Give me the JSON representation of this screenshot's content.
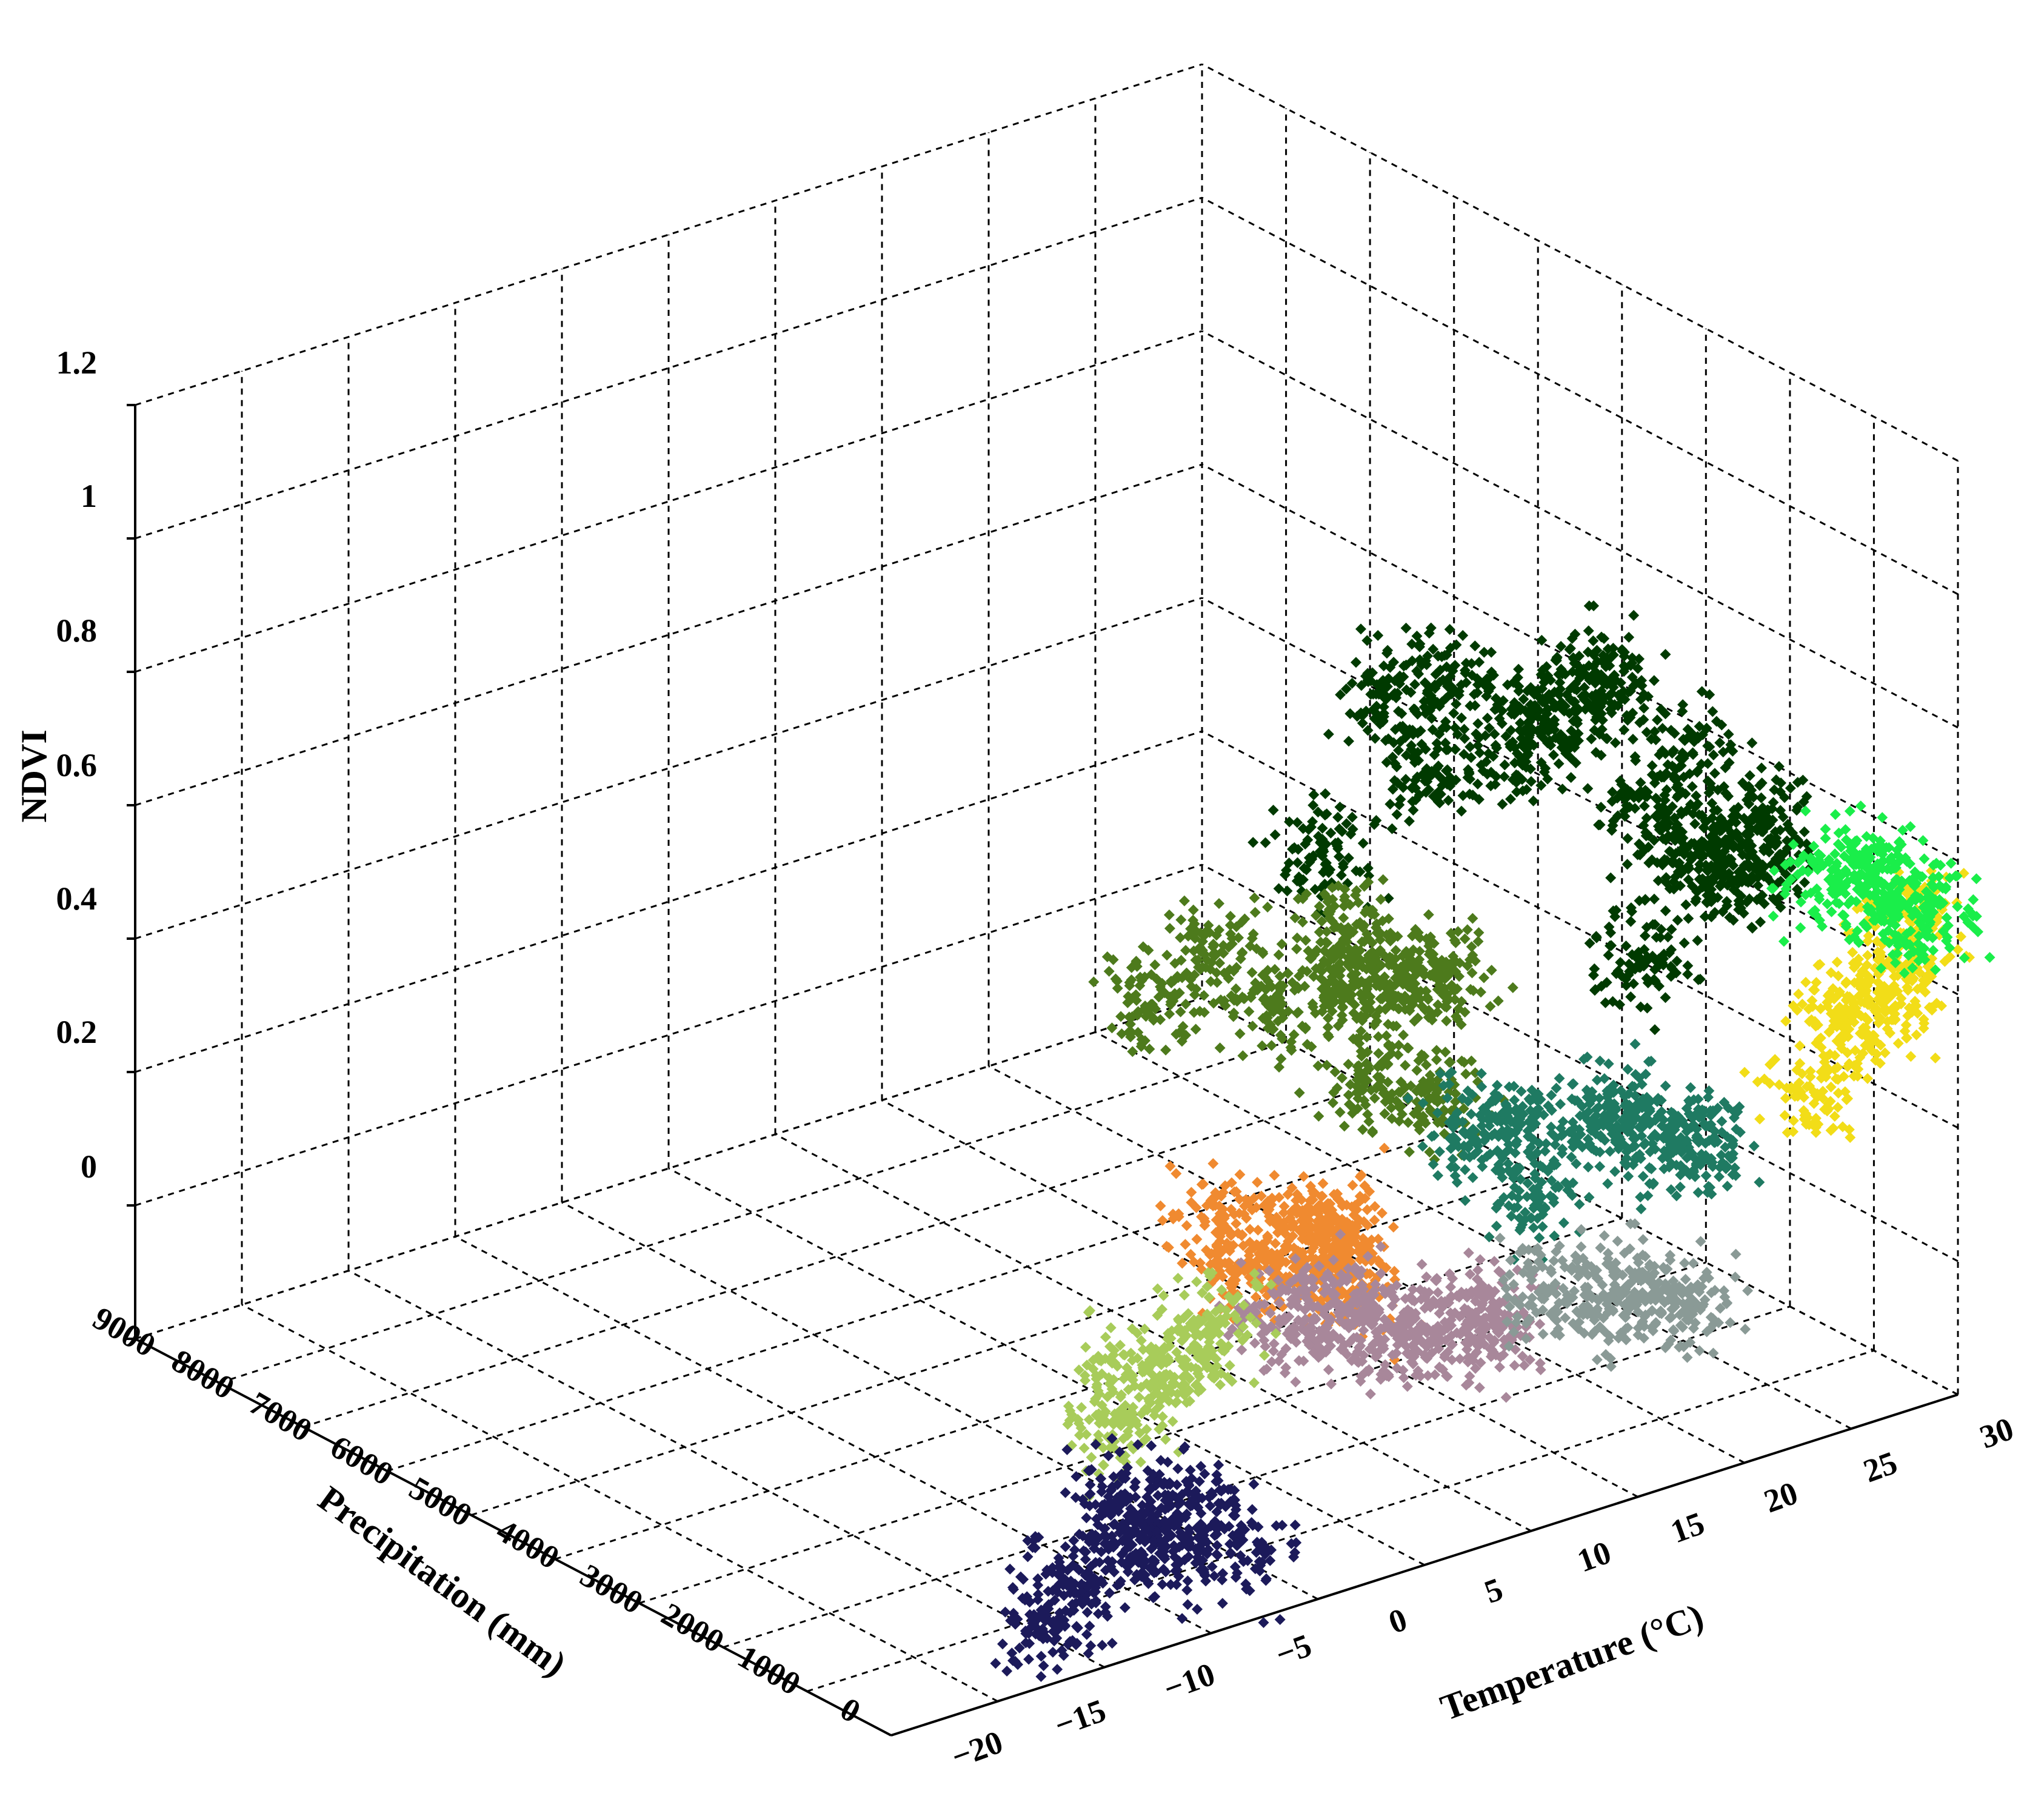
{
  "chart_data": {
    "type": "scatter",
    "dimensions": "3d",
    "zlabel": "NDVI",
    "xlabel": "Precipitation (mm)",
    "ylabel": "Temperature (°C)",
    "zlim": [
      -0.2,
      1.2
    ],
    "xlim": [
      0,
      9000
    ],
    "ylim": [
      -20,
      30
    ],
    "z_ticks": [
      "1.2",
      "1",
      "0.8",
      "0.6",
      "0.4",
      "0.2",
      "0"
    ],
    "x_ticks": [
      "9000",
      "8000",
      "7000",
      "6000",
      "5000",
      "4000",
      "3000",
      "2000",
      "1000",
      "0"
    ],
    "y_ticks": [
      "−20",
      "−15",
      "−10",
      "−5",
      "0",
      "5",
      "10",
      "15",
      "20",
      "25",
      "30"
    ],
    "grid": true,
    "marker": "diamond",
    "series": [
      {
        "color": "#003a00",
        "points": [
          [
            400,
            22,
            0.72
          ],
          [
            1000,
            21,
            0.78
          ],
          [
            1500,
            19,
            0.85
          ],
          [
            2000,
            18,
            0.82
          ],
          [
            2500,
            16,
            0.84
          ],
          [
            3000,
            15,
            0.8
          ],
          [
            1800,
            23,
            0.62
          ],
          [
            2600,
            20,
            0.7
          ],
          [
            800,
            24,
            0.6
          ],
          [
            1200,
            18,
            0.92
          ],
          [
            2200,
            14,
            0.75
          ],
          [
            1600,
            25,
            0.55
          ],
          [
            3000,
            12,
            0.6
          ],
          [
            1000,
            19,
            0.5
          ],
          [
            500,
            20,
            0.64
          ]
        ]
      },
      {
        "color": "#4d7a1c",
        "points": [
          [
            500,
            8,
            0.62
          ],
          [
            1000,
            8,
            0.58
          ],
          [
            1500,
            7,
            0.55
          ],
          [
            2000,
            6,
            0.5
          ],
          [
            1200,
            6,
            0.66
          ],
          [
            700,
            5,
            0.48
          ],
          [
            2500,
            5,
            0.55
          ],
          [
            1800,
            10,
            0.5
          ],
          [
            3000,
            4,
            0.45
          ],
          [
            900,
            9,
            0.4
          ]
        ]
      },
      {
        "color": "#f08a30",
        "points": [
          [
            400,
            2,
            0.3
          ],
          [
            700,
            3,
            0.28
          ],
          [
            1000,
            2,
            0.22
          ],
          [
            1400,
            1,
            0.26
          ],
          [
            600,
            4,
            0.18
          ],
          [
            1100,
            5,
            0.2
          ],
          [
            800,
            0,
            0.25
          ]
        ]
      },
      {
        "color": "#1f7a62",
        "points": [
          [
            300,
            15,
            0.35
          ],
          [
            600,
            17,
            0.3
          ],
          [
            900,
            13,
            0.32
          ],
          [
            1200,
            12,
            0.3
          ],
          [
            500,
            19,
            0.25
          ],
          [
            800,
            21,
            0.22
          ],
          [
            200,
            11,
            0.28
          ]
        ]
      },
      {
        "color": "#a8879a",
        "points": [
          [
            300,
            5,
            0.12
          ],
          [
            500,
            7,
            0.1
          ],
          [
            800,
            4,
            0.15
          ],
          [
            1100,
            6,
            0.08
          ],
          [
            200,
            9,
            0.12
          ],
          [
            600,
            10,
            0.06
          ],
          [
            900,
            2,
            0.14
          ]
        ]
      },
      {
        "color": "#a8cc5a",
        "points": [
          [
            300,
            -5,
            0.18
          ],
          [
            500,
            -3,
            0.2
          ],
          [
            700,
            -6,
            0.15
          ],
          [
            400,
            -8,
            0.12
          ]
        ]
      },
      {
        "color": "#1c1a5a",
        "points": [
          [
            200,
            -8,
            -0.05
          ],
          [
            300,
            -6,
            -0.08
          ],
          [
            500,
            -4,
            -0.05
          ],
          [
            400,
            -10,
            -0.1
          ],
          [
            100,
            -12,
            -0.12
          ],
          [
            600,
            -7,
            -0.02
          ],
          [
            200,
            -3,
            -0.1
          ]
        ]
      },
      {
        "color": "#f2dd18",
        "points": [
          [
            100,
            27,
            0.4
          ],
          [
            200,
            28,
            0.45
          ],
          [
            400,
            26,
            0.38
          ],
          [
            300,
            29,
            0.5
          ],
          [
            150,
            24,
            0.3
          ]
        ]
      },
      {
        "color": "#1aee4a",
        "points": [
          [
            200,
            28,
            0.55
          ],
          [
            300,
            27,
            0.6
          ],
          [
            500,
            26,
            0.58
          ],
          [
            100,
            29,
            0.52
          ]
        ]
      },
      {
        "color": "#8a9a96",
        "points": [
          [
            100,
            14,
            0.1
          ],
          [
            200,
            16,
            0.08
          ],
          [
            300,
            12,
            0.12
          ],
          [
            150,
            18,
            0.05
          ]
        ]
      }
    ]
  }
}
